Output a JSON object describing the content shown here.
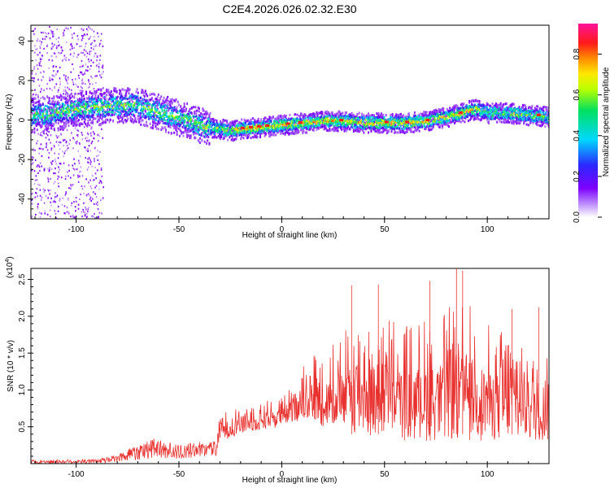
{
  "figure_title": "C2E4.2026.026.02.32.E30",
  "chart_data": [
    {
      "type": "heatmap",
      "xlabel": "Height of straight line (km)",
      "ylabel": "Frequency (Hz)",
      "xlim": [
        -122,
        130
      ],
      "ylim": [
        -50,
        48
      ],
      "xticks": [
        -100,
        -50,
        0,
        50,
        100
      ],
      "yticks": [
        -40,
        -20,
        0,
        20,
        40
      ],
      "ridge": {
        "description_points_x": [
          -122,
          -110,
          -100,
          -90,
          -80,
          -72,
          -65,
          -55,
          -45,
          -38,
          -30,
          -25,
          -20,
          -10,
          0,
          10,
          20,
          30,
          40,
          50,
          60,
          70,
          80,
          90,
          95,
          100,
          110,
          120,
          130
        ],
        "frequency": [
          3,
          4,
          6,
          7,
          8,
          8,
          6,
          3,
          0,
          -3,
          -4,
          -5,
          -4,
          -3,
          -2,
          -1,
          0,
          0,
          -1,
          -1,
          -1,
          0,
          2,
          5,
          6,
          4,
          4,
          3,
          2
        ]
      },
      "colorbar": {
        "label": "Normalized spectral amplitude",
        "range": [
          0,
          0.95
        ],
        "ticks": [
          0.0,
          0.2,
          0.4,
          0.6,
          0.8
        ]
      }
    },
    {
      "type": "line",
      "xlabel": "Height of straight line (km)",
      "ylabel": "SNR (10 * v/v)",
      "scale_label": "(x10",
      "scale_exponent": "4",
      "scale_suffix": ")",
      "xlim": [
        -122,
        130
      ],
      "ylim": [
        0,
        2.65
      ],
      "xticks": [
        -100,
        -50,
        0,
        50,
        100
      ],
      "yticks": [
        0.5,
        1.0,
        1.5,
        2.0,
        2.5
      ],
      "ytick_labels": [
        "0.5",
        "1.0",
        "1.5",
        "2.0",
        "2.5"
      ],
      "color": "#e8312e",
      "envelope": {
        "x": [
          -122,
          -90,
          -80,
          -70,
          -60,
          -50,
          -40,
          -32,
          -30,
          -20,
          -10,
          0,
          5,
          10,
          20,
          30,
          40,
          50,
          60,
          70,
          80,
          90,
          100,
          110,
          120,
          130
        ],
        "upper": [
          0.05,
          0.06,
          0.12,
          0.3,
          0.35,
          0.25,
          0.3,
          0.3,
          0.7,
          0.8,
          0.85,
          0.9,
          1.1,
          1.4,
          1.6,
          1.8,
          2.0,
          2.1,
          1.9,
          2.0,
          2.1,
          2.3,
          1.9,
          1.8,
          1.8,
          1.6
        ],
        "floor": [
          0.0,
          0.0,
          0.02,
          0.05,
          0.08,
          0.05,
          0.1,
          0.1,
          0.3,
          0.4,
          0.45,
          0.5,
          0.55,
          0.6,
          0.5,
          0.45,
          0.35,
          0.35,
          0.3,
          0.3,
          0.3,
          0.3,
          0.3,
          0.3,
          0.3,
          0.3
        ]
      },
      "peaks": [
        {
          "x": 34,
          "y": 2.42
        },
        {
          "x": 47,
          "y": 2.43
        },
        {
          "x": 72,
          "y": 2.48
        },
        {
          "x": 85,
          "y": 2.65
        },
        {
          "x": 88,
          "y": 2.62
        },
        {
          "x": 112,
          "y": 2.1
        },
        {
          "x": 125,
          "y": 2.12
        }
      ]
    }
  ]
}
